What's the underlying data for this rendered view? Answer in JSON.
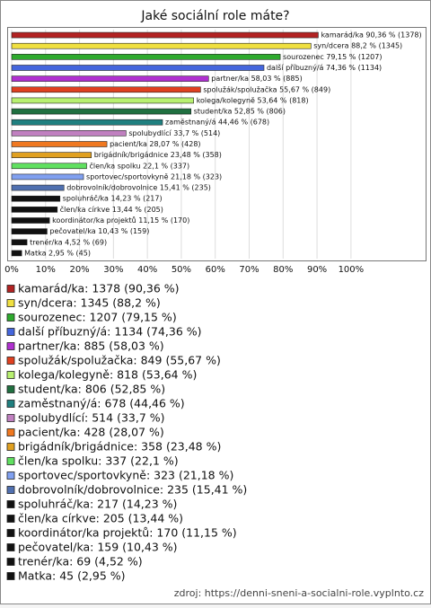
{
  "chart_data": {
    "type": "bar",
    "orientation": "horizontal",
    "title": "Jaké sociální role máte?",
    "values": [
      90.36,
      88.2,
      79.15,
      74.36,
      58.03,
      55.67,
      53.64,
      52.85,
      44.46,
      33.7,
      28.07,
      23.48,
      22.1,
      21.18,
      15.41,
      14.23,
      13.44,
      11.15,
      10.43,
      4.52,
      2.95
    ],
    "value_labels": [
      "kamarád/ka 90,36 % (1378)",
      "syn/dcera 88,2 % (1345)",
      "sourozenec 79,15 % (1207)",
      "další příbuzný/á 74,36 % (1134)",
      "partner/ka 58,03 % (885)",
      "spolužák/spolužačka 55,67 % (849)",
      "kolega/kolegyně 53,64 % (818)",
      "student/ka 52,85 % (806)",
      "zaměstnaný/á 44,46 % (678)",
      "spolubydlící 33,7 % (514)",
      "pacient/ka 28,07 % (428)",
      "brigádník/brigádnice 23,48 % (358)",
      "člen/ka spolku 22,1 % (337)",
      "sportovec/sportovkyně 21,18 % (323)",
      "dobrovolník/dobrovolnice 15,41 % (235)",
      "spoluhráč/ka 14,23 % (217)",
      "člen/ka církve 13,44 % (205)",
      "koordinátor/ka projektů 11,15 % (170)",
      "pečovatel/ka 10,43 % (159)",
      "trenér/ka 4,52 % (69)",
      "Matka 2,95 % (45)"
    ],
    "colors": [
      "#b22222",
      "#f0e040",
      "#2eaa2e",
      "#4466dd",
      "#b030d0",
      "#e04020",
      "#b8f070",
      "#207040",
      "#208080",
      "#c080c0",
      "#f07820",
      "#e0a020",
      "#60e060",
      "#80a0f0",
      "#5070b0",
      "#111111",
      "#111111",
      "#111111",
      "#111111",
      "#111111",
      "#111111"
    ],
    "xlim": [
      0,
      122
    ],
    "xticks": [
      {
        "value": 0,
        "label": "0%"
      },
      {
        "value": 10,
        "label": "10%"
      },
      {
        "value": 20,
        "label": "20%"
      },
      {
        "value": 30,
        "label": "30%"
      },
      {
        "value": 40,
        "label": "40%"
      },
      {
        "value": 50,
        "label": "50%"
      },
      {
        "value": 60,
        "label": "60%"
      },
      {
        "value": 70,
        "label": "70%"
      },
      {
        "value": 80,
        "label": "80%"
      },
      {
        "value": 90,
        "label": "90%"
      },
      {
        "value": 100,
        "label": "100%"
      }
    ],
    "grid": true,
    "legend_labels": [
      "kamarád/ka: 1378 (90,36 %)",
      "syn/dcera: 1345 (88,2 %)",
      "sourozenec: 1207 (79,15 %)",
      "další příbuzný/á: 1134 (74,36 %)",
      "partner/ka: 885 (58,03 %)",
      "spolužák/spolužačka: 849 (55,67 %)",
      "kolega/kolegyně: 818 (53,64 %)",
      "student/ka: 806 (52,85 %)",
      "zaměstnaný/á: 678 (44,46 %)",
      "spolubydlící: 514 (33,7 %)",
      "pacient/ka: 428 (28,07 %)",
      "brigádník/brigádnice: 358 (23,48 %)",
      "člen/ka spolku: 337 (22,1 %)",
      "sportovec/sportovkyně: 323 (21,18 %)",
      "dobrovolník/dobrovolnice: 235 (15,41 %)",
      "spoluhráč/ka: 217 (14,23 %)",
      "člen/ka církve: 205 (13,44 %)",
      "koordinátor/ka projektů: 170 (11,15 %)",
      "pečovatel/ka: 159 (10,43 %)",
      "trenér/ka: 69 (4,52 %)",
      "Matka: 45 (2,95 %)"
    ],
    "source": "zdroj: https://denni-sneni-a-socialni-role.vyplnto.cz"
  }
}
